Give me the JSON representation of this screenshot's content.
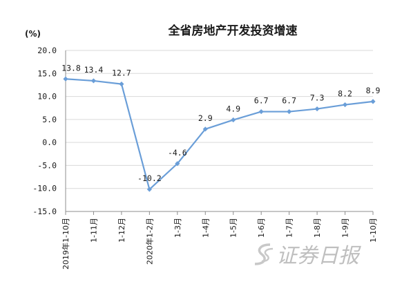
{
  "chart_data": {
    "type": "line",
    "title": "全省房地产开发投资增速",
    "ylabel": "(%)",
    "xlabel": "",
    "ylim": [
      -15.0,
      20.0
    ],
    "ystep": 5.0,
    "yticks": [
      "20.0",
      "15.0",
      "10.0",
      "5.0",
      "0.0",
      "-5.0",
      "-10.0",
      "-15.0"
    ],
    "categories": [
      "2019年1-10月",
      "1-11月",
      "1-12月",
      "2020年1-2月",
      "1-3月",
      "1-4月",
      "1-5月",
      "1-6月",
      "1-7月",
      "1-8月",
      "1-9月",
      "1-10月"
    ],
    "series": [
      {
        "values": [
          13.8,
          13.4,
          12.7,
          -10.2,
          -4.6,
          2.9,
          4.9,
          6.7,
          6.7,
          7.3,
          8.2,
          8.9
        ],
        "labels": [
          "13.8",
          "13.4",
          "12.7",
          "-10.2",
          "-4.6",
          "2.9",
          "4.9",
          "6.7",
          "6.7",
          "7.3",
          "8.2",
          "8.9"
        ],
        "color": "#6a9ed8"
      }
    ],
    "grid": "horizontal",
    "legend": "none"
  },
  "watermark": "证券日报"
}
